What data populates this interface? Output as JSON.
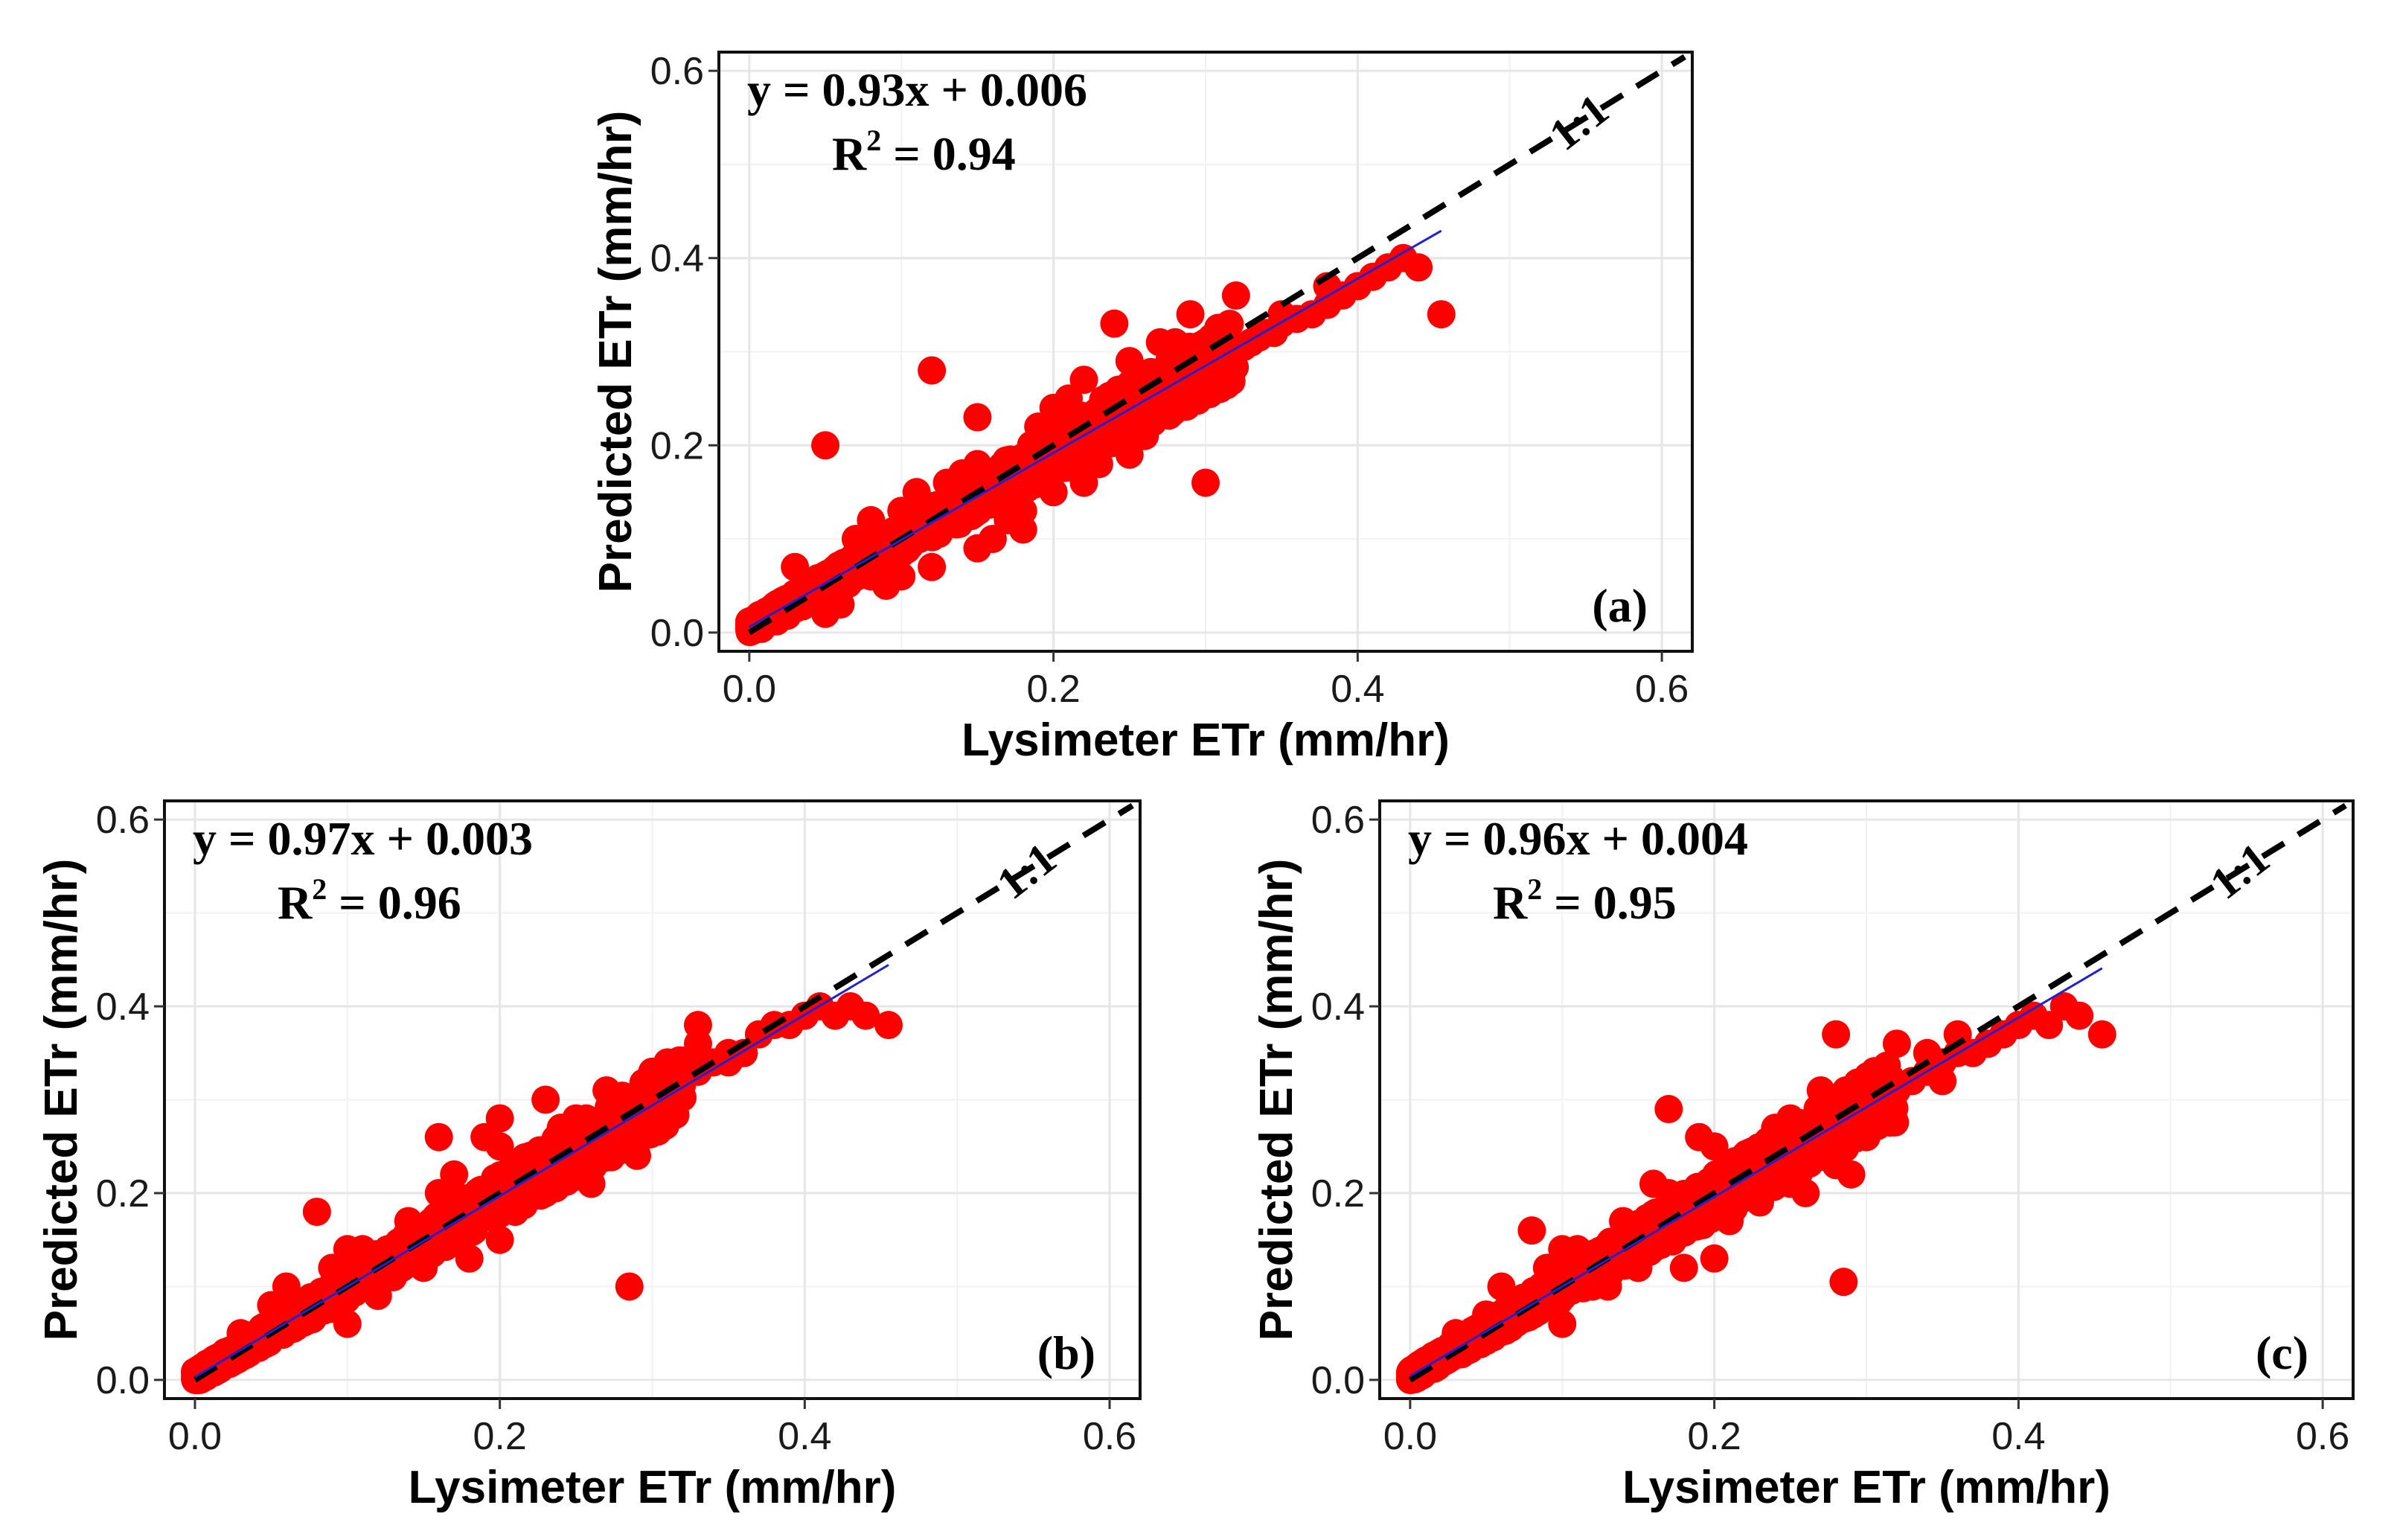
{
  "chart_data": [
    {
      "type": "scatter",
      "panel": "(a)",
      "xlabel": "Lysimeter ETr (mm/hr)",
      "ylabel": "Predicted ETr (mm/hr)",
      "xlim": [
        -0.02,
        0.62
      ],
      "ylim": [
        -0.02,
        0.62
      ],
      "xticks": [
        "0.0",
        "0.2",
        "0.4",
        "0.6"
      ],
      "yticks": [
        "0.0",
        "0.2",
        "0.4",
        "0.6"
      ],
      "tick_values": [
        0,
        0.2,
        0.4,
        0.6
      ],
      "grid": true,
      "equation": "y = 0.93x + 0.006",
      "r2_label": "R",
      "r2_sup": "2",
      "r2_value": " = 0.94",
      "one_to_one_label": "1:1",
      "fit": {
        "slope": 0.93,
        "intercept": 0.006,
        "x_range": [
          0.0,
          0.455
        ]
      },
      "one_to_one_range": [
        0.0,
        0.615
      ],
      "series": [
        {
          "name": "observations",
          "color": "#ff0000",
          "x": [
            0.003,
            0.008,
            0.012,
            0.018,
            0.022,
            0.025,
            0.03,
            0.035,
            0.04,
            0.045,
            0.05,
            0.055,
            0.06,
            0.065,
            0.07,
            0.075,
            0.08,
            0.085,
            0.09,
            0.095,
            0.1,
            0.105,
            0.11,
            0.115,
            0.12,
            0.125,
            0.13,
            0.135,
            0.14,
            0.145,
            0.15,
            0.155,
            0.16,
            0.165,
            0.17,
            0.175,
            0.18,
            0.185,
            0.19,
            0.195,
            0.2,
            0.205,
            0.21,
            0.215,
            0.22,
            0.225,
            0.23,
            0.235,
            0.24,
            0.245,
            0.25,
            0.255,
            0.26,
            0.265,
            0.27,
            0.275,
            0.28,
            0.285,
            0.29,
            0.295,
            0.3,
            0.305,
            0.31,
            0.315,
            0.32,
            0.325,
            0.33,
            0.335,
            0.34,
            0.345,
            0.35,
            0.36,
            0.37,
            0.38,
            0.39,
            0.4,
            0.41,
            0.42,
            0.43,
            0.44,
            0.455,
            0.05,
            0.08,
            0.12,
            0.16,
            0.2,
            0.24,
            0.28,
            0.03,
            0.06,
            0.1,
            0.14,
            0.18,
            0.22,
            0.26,
            0.3,
            0.09,
            0.13,
            0.17,
            0.21,
            0.25,
            0.29,
            0.33,
            0.11,
            0.15,
            0.19,
            0.23,
            0.27,
            0.05,
            0.1,
            0.15,
            0.2,
            0.25,
            0.3,
            0.35,
            0.15,
            0.2,
            0.25,
            0.07,
            0.12,
            0.22,
            0.32,
            0.08,
            0.18,
            0.28,
            0.38
          ],
          "y": [
            0.005,
            0.004,
            0.015,
            0.012,
            0.025,
            0.018,
            0.03,
            0.028,
            0.045,
            0.036,
            0.05,
            0.048,
            0.062,
            0.052,
            0.07,
            0.066,
            0.08,
            0.072,
            0.09,
            0.084,
            0.1,
            0.098,
            0.105,
            0.112,
            0.115,
            0.118,
            0.128,
            0.124,
            0.135,
            0.132,
            0.145,
            0.138,
            0.155,
            0.148,
            0.165,
            0.158,
            0.172,
            0.17,
            0.18,
            0.178,
            0.19,
            0.188,
            0.2,
            0.195,
            0.205,
            0.21,
            0.215,
            0.22,
            0.225,
            0.228,
            0.235,
            0.238,
            0.245,
            0.248,
            0.255,
            0.26,
            0.265,
            0.268,
            0.272,
            0.275,
            0.28,
            0.285,
            0.29,
            0.295,
            0.3,
            0.305,
            0.31,
            0.315,
            0.32,
            0.32,
            0.33,
            0.335,
            0.34,
            0.35,
            0.36,
            0.37,
            0.38,
            0.39,
            0.4,
            0.39,
            0.34,
            0.2,
            0.12,
            0.28,
            0.1,
            0.15,
            0.33,
            0.25,
            0.07,
            0.03,
            0.06,
            0.17,
            0.13,
            0.16,
            0.21,
            0.26,
            0.05,
            0.16,
            0.12,
            0.25,
            0.19,
            0.34,
            0.31,
            0.15,
            0.09,
            0.22,
            0.18,
            0.31,
            0.02,
            0.13,
            0.18,
            0.15,
            0.21,
            0.16,
            0.34,
            0.23,
            0.24,
            0.29,
            0.1,
            0.07,
            0.27,
            0.36,
            0.06,
            0.11,
            0.31,
            0.37
          ]
        }
      ]
    },
    {
      "type": "scatter",
      "panel": "(b)",
      "xlabel": "Lysimeter ETr (mm/hr)",
      "ylabel": "Predicted ETr (mm/hr)",
      "xlim": [
        -0.02,
        0.62
      ],
      "ylim": [
        -0.02,
        0.62
      ],
      "xticks": [
        "0.0",
        "0.2",
        "0.4",
        "0.6"
      ],
      "yticks": [
        "0.0",
        "0.2",
        "0.4",
        "0.6"
      ],
      "tick_values": [
        0,
        0.2,
        0.4,
        0.6
      ],
      "grid": true,
      "equation": "y = 0.97x + 0.003",
      "r2_label": "R",
      "r2_sup": "2",
      "r2_value": " = 0.96",
      "one_to_one_label": "1:1",
      "fit": {
        "slope": 0.97,
        "intercept": 0.003,
        "x_range": [
          0.0,
          0.455
        ]
      },
      "one_to_one_range": [
        0.0,
        0.615
      ],
      "series": [
        {
          "name": "observations",
          "color": "#ff0000",
          "x": [
            0.003,
            0.008,
            0.012,
            0.018,
            0.022,
            0.025,
            0.03,
            0.035,
            0.04,
            0.045,
            0.05,
            0.055,
            0.06,
            0.065,
            0.07,
            0.075,
            0.08,
            0.085,
            0.09,
            0.095,
            0.1,
            0.105,
            0.11,
            0.115,
            0.12,
            0.125,
            0.13,
            0.135,
            0.14,
            0.145,
            0.15,
            0.155,
            0.16,
            0.165,
            0.17,
            0.175,
            0.18,
            0.185,
            0.19,
            0.195,
            0.2,
            0.205,
            0.21,
            0.215,
            0.22,
            0.225,
            0.23,
            0.235,
            0.24,
            0.245,
            0.25,
            0.255,
            0.26,
            0.265,
            0.27,
            0.275,
            0.28,
            0.285,
            0.29,
            0.295,
            0.3,
            0.305,
            0.31,
            0.32,
            0.33,
            0.34,
            0.35,
            0.36,
            0.37,
            0.38,
            0.39,
            0.4,
            0.41,
            0.42,
            0.43,
            0.44,
            0.455,
            0.08,
            0.12,
            0.16,
            0.2,
            0.24,
            0.28,
            0.03,
            0.06,
            0.1,
            0.14,
            0.18,
            0.22,
            0.26,
            0.3,
            0.09,
            0.13,
            0.17,
            0.21,
            0.25,
            0.29,
            0.33,
            0.11,
            0.15,
            0.19,
            0.23,
            0.27,
            0.05,
            0.1,
            0.15,
            0.2,
            0.25,
            0.3,
            0.35,
            0.285,
            0.31,
            0.33,
            0.16,
            0.2,
            0.23
          ],
          "y": [
            0.004,
            0.006,
            0.014,
            0.016,
            0.024,
            0.022,
            0.03,
            0.032,
            0.04,
            0.042,
            0.05,
            0.052,
            0.06,
            0.062,
            0.07,
            0.072,
            0.08,
            0.082,
            0.09,
            0.092,
            0.1,
            0.1,
            0.11,
            0.112,
            0.12,
            0.12,
            0.13,
            0.13,
            0.14,
            0.142,
            0.15,
            0.15,
            0.16,
            0.16,
            0.17,
            0.172,
            0.18,
            0.18,
            0.19,
            0.19,
            0.2,
            0.2,
            0.21,
            0.21,
            0.22,
            0.22,
            0.23,
            0.23,
            0.24,
            0.24,
            0.25,
            0.25,
            0.26,
            0.26,
            0.27,
            0.27,
            0.28,
            0.28,
            0.29,
            0.29,
            0.3,
            0.3,
            0.31,
            0.32,
            0.33,
            0.34,
            0.35,
            0.35,
            0.37,
            0.38,
            0.38,
            0.39,
            0.4,
            0.39,
            0.4,
            0.39,
            0.38,
            0.18,
            0.09,
            0.2,
            0.15,
            0.27,
            0.25,
            0.05,
            0.1,
            0.06,
            0.17,
            0.13,
            0.24,
            0.21,
            0.33,
            0.12,
            0.11,
            0.22,
            0.18,
            0.28,
            0.24,
            0.36,
            0.14,
            0.12,
            0.26,
            0.2,
            0.31,
            0.08,
            0.14,
            0.13,
            0.25,
            0.22,
            0.27,
            0.34,
            0.1,
            0.34,
            0.38,
            0.26,
            0.28,
            0.3
          ]
        }
      ]
    },
    {
      "type": "scatter",
      "panel": "(c)",
      "xlabel": "Lysimeter ETr (mm/hr)",
      "ylabel": "Predicted ETr (mm/hr)",
      "xlim": [
        -0.02,
        0.62
      ],
      "ylim": [
        -0.02,
        0.62
      ],
      "xticks": [
        "0.0",
        "0.2",
        "0.4",
        "0.6"
      ],
      "yticks": [
        "0.0",
        "0.2",
        "0.4",
        "0.6"
      ],
      "tick_values": [
        0,
        0.2,
        0.4,
        0.6
      ],
      "grid": true,
      "equation": "y = 0.96x + 0.004",
      "r2_label": "R",
      "r2_sup": "2",
      "r2_value": " = 0.95",
      "one_to_one_label": "1:1",
      "fit": {
        "slope": 0.96,
        "intercept": 0.004,
        "x_range": [
          0.0,
          0.455
        ]
      },
      "one_to_one_range": [
        0.0,
        0.615
      ],
      "series": [
        {
          "name": "observations",
          "color": "#ff0000",
          "x": [
            0.003,
            0.008,
            0.012,
            0.018,
            0.022,
            0.025,
            0.03,
            0.035,
            0.04,
            0.045,
            0.05,
            0.055,
            0.06,
            0.065,
            0.07,
            0.075,
            0.08,
            0.085,
            0.09,
            0.095,
            0.1,
            0.105,
            0.11,
            0.115,
            0.12,
            0.125,
            0.13,
            0.135,
            0.14,
            0.145,
            0.15,
            0.155,
            0.16,
            0.165,
            0.17,
            0.175,
            0.18,
            0.185,
            0.19,
            0.195,
            0.2,
            0.205,
            0.21,
            0.215,
            0.22,
            0.225,
            0.23,
            0.235,
            0.24,
            0.245,
            0.25,
            0.255,
            0.26,
            0.265,
            0.27,
            0.275,
            0.28,
            0.285,
            0.29,
            0.295,
            0.3,
            0.31,
            0.32,
            0.33,
            0.34,
            0.35,
            0.36,
            0.37,
            0.38,
            0.39,
            0.4,
            0.41,
            0.42,
            0.43,
            0.44,
            0.455,
            0.08,
            0.12,
            0.16,
            0.2,
            0.24,
            0.28,
            0.03,
            0.06,
            0.1,
            0.14,
            0.18,
            0.22,
            0.26,
            0.3,
            0.09,
            0.13,
            0.17,
            0.21,
            0.25,
            0.29,
            0.11,
            0.15,
            0.19,
            0.23,
            0.27,
            0.05,
            0.1,
            0.15,
            0.2,
            0.25,
            0.3,
            0.35,
            0.285,
            0.28,
            0.32,
            0.34,
            0.17,
            0.36
          ],
          "y": [
            0.005,
            0.005,
            0.013,
            0.016,
            0.024,
            0.022,
            0.03,
            0.032,
            0.04,
            0.042,
            0.05,
            0.052,
            0.06,
            0.062,
            0.07,
            0.072,
            0.08,
            0.082,
            0.09,
            0.092,
            0.1,
            0.1,
            0.11,
            0.112,
            0.12,
            0.12,
            0.13,
            0.128,
            0.14,
            0.14,
            0.15,
            0.148,
            0.16,
            0.158,
            0.17,
            0.168,
            0.18,
            0.178,
            0.19,
            0.188,
            0.2,
            0.198,
            0.21,
            0.205,
            0.215,
            0.218,
            0.225,
            0.228,
            0.235,
            0.238,
            0.245,
            0.248,
            0.255,
            0.258,
            0.265,
            0.268,
            0.275,
            0.278,
            0.285,
            0.288,
            0.295,
            0.3,
            0.31,
            0.32,
            0.33,
            0.34,
            0.35,
            0.35,
            0.36,
            0.37,
            0.38,
            0.39,
            0.38,
            0.4,
            0.39,
            0.37,
            0.16,
            0.1,
            0.21,
            0.13,
            0.27,
            0.23,
            0.05,
            0.1,
            0.06,
            0.17,
            0.12,
            0.24,
            0.2,
            0.32,
            0.12,
            0.1,
            0.2,
            0.17,
            0.28,
            0.22,
            0.14,
            0.12,
            0.26,
            0.19,
            0.31,
            0.07,
            0.14,
            0.12,
            0.25,
            0.21,
            0.26,
            0.32,
            0.105,
            0.37,
            0.36,
            0.35,
            0.29,
            0.37
          ]
        }
      ]
    }
  ]
}
